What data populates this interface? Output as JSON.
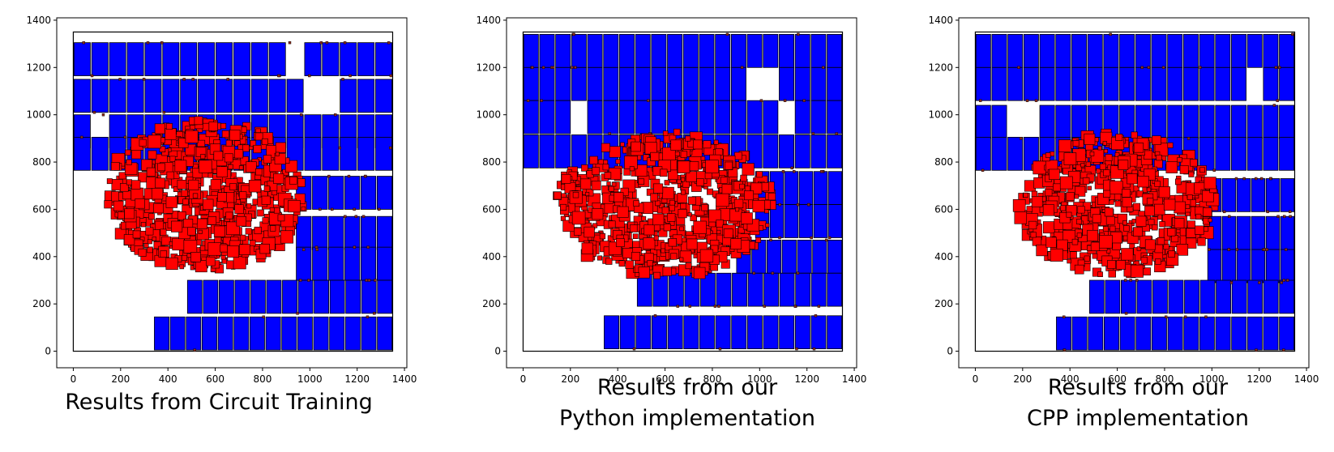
{
  "colors": {
    "macro": "#0000ff",
    "std_cell": "#ff0000",
    "outline": "#000000",
    "pin": "#8b2a1a"
  },
  "panels": [
    {
      "caption_lines": [
        "Results from Circuit Training"
      ],
      "xticks": [
        "0",
        "200",
        "400",
        "600",
        "800",
        "1000",
        "1200",
        "1400"
      ],
      "yticks": [
        "0",
        "200",
        "400",
        "600",
        "800",
        "1000",
        "1200",
        "1400"
      ]
    },
    {
      "caption_lines": [
        "Results from our",
        "Python implementation"
      ],
      "xticks": [
        "0",
        "200",
        "400",
        "600",
        "800",
        "1000",
        "1200",
        "1400"
      ],
      "yticks": [
        "0",
        "200",
        "400",
        "600",
        "800",
        "1000",
        "1200",
        "1400"
      ]
    },
    {
      "caption_lines": [
        "Results from our",
        "CPP implementation"
      ],
      "xticks": [
        "0",
        "200",
        "400",
        "600",
        "800",
        "1000",
        "1200",
        "1400"
      ],
      "yticks": [
        "0",
        "200",
        "400",
        "600",
        "800",
        "1000",
        "1200",
        "1400"
      ]
    }
  ],
  "chart_data": [
    {
      "type": "scatter",
      "title": "Results from Circuit Training",
      "xlim": [
        -70,
        1410
      ],
      "ylim": [
        -70,
        1410
      ],
      "canvas": {
        "x": [
          0,
          1350
        ],
        "y": [
          0,
          1350
        ]
      },
      "macro_rows": [
        {
          "y0": 1165,
          "h": 140,
          "x0": 0,
          "x1": 1350,
          "n": 18,
          "gaps": [
            12
          ]
        },
        {
          "y0": 1010,
          "h": 140,
          "x0": 0,
          "x1": 1350,
          "n": 18,
          "gaps": [
            13,
            14
          ]
        },
        {
          "y0": 860,
          "h": 140,
          "x0": 0,
          "x1": 1350,
          "n": 18,
          "gaps": [
            1
          ]
        },
        {
          "y0": 765,
          "h": 140,
          "x0": 0,
          "x1": 1350,
          "n": 18,
          "gaps": []
        },
        {
          "y0": 600,
          "h": 140,
          "x0": 940,
          "x1": 1350,
          "n": 6,
          "gaps": []
        },
        {
          "y0": 430,
          "h": 140,
          "x0": 940,
          "x1": 1350,
          "n": 6,
          "gaps": []
        },
        {
          "y0": 300,
          "h": 140,
          "x0": 940,
          "x1": 1350,
          "n": 6,
          "gaps": []
        },
        {
          "y0": 160,
          "h": 140,
          "x0": 480,
          "x1": 1350,
          "n": 13,
          "gaps": []
        },
        {
          "y0": 5,
          "h": 140,
          "x0": 340,
          "x1": 1350,
          "n": 15,
          "gaps": []
        }
      ],
      "cluster": {
        "cx": 560,
        "cy": 660,
        "rx": 420,
        "ry": 320,
        "left": 120,
        "count": 620
      }
    },
    {
      "type": "scatter",
      "title": "Results from our Python implementation",
      "xlim": [
        -70,
        1410
      ],
      "ylim": [
        -70,
        1410
      ],
      "canvas": {
        "x": [
          0,
          1350
        ],
        "y": [
          0,
          1350
        ]
      },
      "macro_rows": [
        {
          "y0": 1200,
          "h": 140,
          "x0": 0,
          "x1": 1350,
          "n": 20,
          "gaps": []
        },
        {
          "y0": 1060,
          "h": 140,
          "x0": 0,
          "x1": 1350,
          "n": 20,
          "gaps": [
            14,
            15
          ]
        },
        {
          "y0": 920,
          "h": 140,
          "x0": 0,
          "x1": 1350,
          "n": 20,
          "gaps": [
            3,
            16
          ]
        },
        {
          "y0": 775,
          "h": 140,
          "x0": 0,
          "x1": 1350,
          "n": 20,
          "gaps": []
        },
        {
          "y0": 620,
          "h": 140,
          "x0": 980,
          "x1": 1350,
          "n": 6,
          "gaps": []
        },
        {
          "y0": 480,
          "h": 140,
          "x0": 980,
          "x1": 1350,
          "n": 6,
          "gaps": []
        },
        {
          "y0": 330,
          "h": 140,
          "x0": 900,
          "x1": 1350,
          "n": 7,
          "gaps": []
        },
        {
          "y0": 190,
          "h": 140,
          "x0": 480,
          "x1": 1350,
          "n": 13,
          "gaps": []
        },
        {
          "y0": 10,
          "h": 140,
          "x0": 340,
          "x1": 1350,
          "n": 15,
          "gaps": []
        }
      ],
      "cluster": {
        "cx": 600,
        "cy": 620,
        "rx": 460,
        "ry": 310,
        "left": 140,
        "count": 640
      }
    },
    {
      "type": "scatter",
      "title": "Results from our CPP implementation",
      "xlim": [
        -70,
        1410
      ],
      "ylim": [
        -70,
        1410
      ],
      "canvas": {
        "x": [
          0,
          1350
        ],
        "y": [
          0,
          1350
        ]
      },
      "macro_rows": [
        {
          "y0": 1200,
          "h": 140,
          "x0": 0,
          "x1": 1350,
          "n": 20,
          "gaps": []
        },
        {
          "y0": 1060,
          "h": 140,
          "x0": 0,
          "x1": 1350,
          "n": 20,
          "gaps": [
            17
          ]
        },
        {
          "y0": 900,
          "h": 140,
          "x0": 0,
          "x1": 1350,
          "n": 20,
          "gaps": [
            2,
            3
          ]
        },
        {
          "y0": 765,
          "h": 140,
          "x0": 0,
          "x1": 1350,
          "n": 20,
          "gaps": []
        },
        {
          "y0": 590,
          "h": 140,
          "x0": 980,
          "x1": 1350,
          "n": 6,
          "gaps": []
        },
        {
          "y0": 430,
          "h": 140,
          "x0": 980,
          "x1": 1350,
          "n": 6,
          "gaps": []
        },
        {
          "y0": 290,
          "h": 140,
          "x0": 980,
          "x1": 1350,
          "n": 6,
          "gaps": []
        },
        {
          "y0": 160,
          "h": 140,
          "x0": 480,
          "x1": 1350,
          "n": 13,
          "gaps": []
        },
        {
          "y0": 5,
          "h": 140,
          "x0": 340,
          "x1": 1350,
          "n": 15,
          "gaps": []
        }
      ],
      "cluster": {
        "cx": 600,
        "cy": 620,
        "rx": 420,
        "ry": 300,
        "left": 150,
        "count": 600
      }
    }
  ]
}
